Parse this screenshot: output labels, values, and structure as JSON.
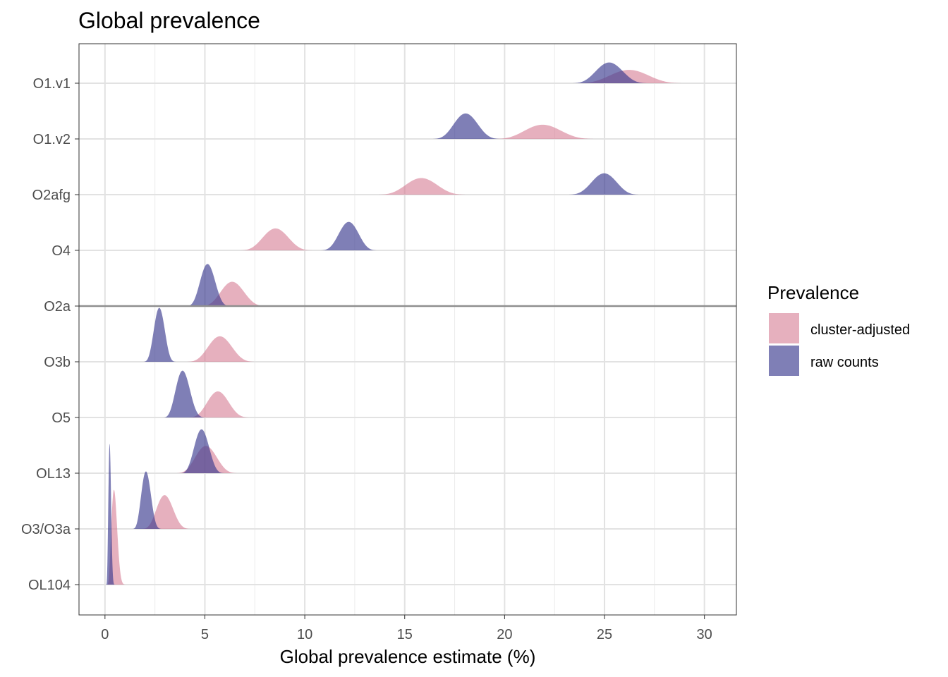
{
  "chart_data": {
    "type": "ridgeline-density",
    "title": "Global prevalence",
    "xlabel": "Global prevalence estimate (%)",
    "ylabel": "",
    "xlim": [
      -1.3,
      31.6
    ],
    "x_ticks": [
      0,
      5,
      10,
      15,
      20,
      25,
      30
    ],
    "x_tick_labels": [
      "0",
      "5",
      "10",
      "15",
      "20",
      "25",
      "30"
    ],
    "categories": [
      "O1.v1",
      "O1.v2",
      "O2afg",
      "O4",
      "O2a",
      "O3b",
      "O5",
      "OL13",
      "O3/O3a",
      "OL104"
    ],
    "reference_line_category": "O2a",
    "grid": true,
    "legend": {
      "title": "Prevalence",
      "position": "right",
      "entries": [
        {
          "key": "cluster-adjusted",
          "label": "cluster-adjusted",
          "color": "#d67b93"
        },
        {
          "key": "raw",
          "label": "raw counts",
          "color": "#3b3a8f"
        }
      ]
    },
    "series": [
      {
        "name": "cluster-adjusted",
        "color": "#d67b93",
        "opacity": 0.6,
        "densities": [
          {
            "category": "O1.v1",
            "min": 23.0,
            "max": 29.6,
            "mode": 26.2,
            "peak": 0.45
          },
          {
            "category": "O1.v2",
            "min": 19.0,
            "max": 25.2,
            "mode": 21.8,
            "peak": 0.48
          },
          {
            "category": "O2afg",
            "min": 13.2,
            "max": 18.6,
            "mode": 15.8,
            "peak": 0.56
          },
          {
            "category": "O4",
            "min": 6.4,
            "max": 10.8,
            "mode": 8.5,
            "peak": 0.74
          },
          {
            "category": "O2a",
            "min": 4.5,
            "max": 8.5,
            "mode": 6.3,
            "peak": 0.82
          },
          {
            "category": "O3b",
            "min": 3.8,
            "max": 7.9,
            "mode": 5.7,
            "peak": 0.86
          },
          {
            "category": "O5",
            "min": 3.9,
            "max": 7.6,
            "mode": 5.6,
            "peak": 0.88
          },
          {
            "category": "OL13",
            "min": 3.3,
            "max": 7.0,
            "mode": 5.0,
            "peak": 0.92
          },
          {
            "category": "O3/O3a",
            "min": 1.7,
            "max": 4.6,
            "mode": 2.9,
            "peak": 1.14
          },
          {
            "category": "OL104",
            "min": 0.1,
            "max": 1.2,
            "mode": 0.35,
            "peak": 3.2
          }
        ]
      },
      {
        "name": "raw counts",
        "color": "#3b3a8f",
        "opacity": 0.65,
        "densities": [
          {
            "category": "O1.v1",
            "min": 23.0,
            "max": 27.6,
            "mode": 25.2,
            "peak": 0.7
          },
          {
            "category": "O1.v2",
            "min": 16.1,
            "max": 20.2,
            "mode": 18.0,
            "peak": 0.86
          },
          {
            "category": "O2afg",
            "min": 22.8,
            "max": 27.1,
            "mode": 25.0,
            "peak": 0.72
          },
          {
            "category": "O4",
            "min": 10.5,
            "max": 13.9,
            "mode": 12.2,
            "peak": 0.96
          },
          {
            "category": "O2a",
            "min": 3.9,
            "max": 6.5,
            "mode": 5.1,
            "peak": 1.42
          },
          {
            "category": "O3b",
            "min": 1.8,
            "max": 3.7,
            "mode": 2.7,
            "peak": 1.82
          },
          {
            "category": "O5",
            "min": 2.8,
            "max": 5.3,
            "mode": 3.8,
            "peak": 1.58
          },
          {
            "category": "OL13",
            "min": 3.6,
            "max": 6.2,
            "mode": 4.8,
            "peak": 1.48
          },
          {
            "category": "O3/O3a",
            "min": 1.3,
            "max": 3.0,
            "mode": 2.0,
            "peak": 1.94
          },
          {
            "category": "OL104",
            "min": 0.05,
            "max": 0.55,
            "mode": 0.2,
            "peak": 4.75
          }
        ]
      }
    ]
  }
}
